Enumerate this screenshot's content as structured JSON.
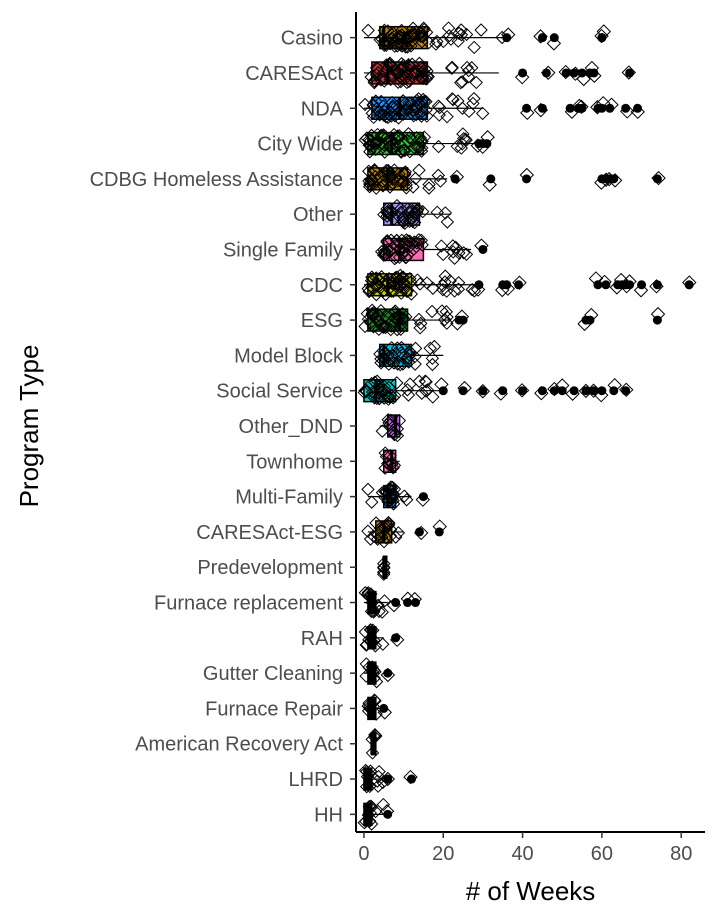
{
  "chart_data": {
    "type": "boxplot",
    "orientation": "horizontal",
    "xlabel": "# of Weeks",
    "ylabel": "Program Type",
    "xlim": [
      -2,
      86
    ],
    "xticks": [
      0,
      20,
      40,
      60,
      80
    ],
    "grid": false,
    "legend": "none",
    "categories": [
      {
        "name": "Casino",
        "color": "#B8860B",
        "q1": 4,
        "median": 5,
        "q3": 16,
        "whisker_low": 0,
        "whisker_high": 35,
        "outliers": [
          36,
          45,
          48,
          60,
          60
        ]
      },
      {
        "name": "CARESAct",
        "color": "#CD3333",
        "q1": 2,
        "median": 6,
        "q3": 16,
        "whisker_low": 0,
        "whisker_high": 34,
        "outliers": [
          40,
          46,
          51,
          53,
          55,
          57,
          58,
          67
        ]
      },
      {
        "name": "NDA",
        "color": "#1E90FF",
        "q1": 2,
        "median": 9,
        "q3": 16,
        "whisker_low": 0,
        "whisker_high": 30,
        "outliers": [
          41,
          45,
          52,
          54,
          55,
          59,
          60,
          62,
          66,
          69
        ]
      },
      {
        "name": "City Wide",
        "color": "#32CD32",
        "q1": 1,
        "median": 7,
        "q3": 15,
        "whisker_low": 0,
        "whisker_high": 28,
        "outliers": [
          29,
          30,
          31
        ]
      },
      {
        "name": "CDBG Homeless Assistance",
        "color": "#B8860B",
        "q1": 1,
        "median": 6,
        "q3": 11,
        "whisker_low": 0,
        "whisker_high": 21,
        "outliers": [
          23,
          32,
          41,
          60,
          61,
          62,
          63,
          74
        ]
      },
      {
        "name": "Other",
        "color": "#9999FF",
        "q1": 5,
        "median": 7,
        "q3": 14,
        "whisker_low": 5,
        "whisker_high": 22,
        "outliers": []
      },
      {
        "name": "Single Family",
        "color": "#FF69B4",
        "q1": 5,
        "median": 9,
        "q3": 15,
        "whisker_low": 4,
        "whisker_high": 27,
        "outliers": [
          30
        ]
      },
      {
        "name": "CDC",
        "color": "#CDCD00",
        "q1": 1,
        "median": 6,
        "q3": 12,
        "whisker_low": 0,
        "whisker_high": 28,
        "outliers": [
          29,
          35,
          36,
          39,
          59,
          61,
          64,
          65,
          66,
          67,
          70,
          74,
          82
        ]
      },
      {
        "name": "ESG",
        "color": "#228B22",
        "q1": 1,
        "median": 9,
        "q3": 11,
        "whisker_low": 0,
        "whisker_high": 22,
        "outliers": [
          24,
          25,
          56,
          57,
          74
        ]
      },
      {
        "name": "Model Block",
        "color": "#00BFFF",
        "q1": 4,
        "median": 5,
        "q3": 12,
        "whisker_low": 4,
        "whisker_high": 20,
        "outliers": []
      },
      {
        "name": "Social Service",
        "color": "#00CED1",
        "q1": 0,
        "median": 3,
        "q3": 8,
        "whisker_low": 0,
        "whisker_high": 19,
        "outliers": [
          20,
          25,
          30,
          35,
          40,
          45,
          48,
          50,
          53,
          56,
          58,
          60,
          63,
          66
        ]
      },
      {
        "name": "Other_DND",
        "color": "#CC66FF",
        "q1": 6,
        "median": 8,
        "q3": 9,
        "whisker_low": 4,
        "whisker_high": 9,
        "outliers": []
      },
      {
        "name": "Townhome",
        "color": "#FF69B4",
        "q1": 5,
        "median": 7,
        "q3": 8,
        "whisker_low": 5,
        "whisker_high": 9,
        "outliers": []
      },
      {
        "name": "Multi-Family",
        "color": "#1E90FF",
        "q1": 5,
        "median": 6,
        "q3": 8,
        "whisker_low": 1,
        "whisker_high": 12,
        "outliers": [
          15
        ]
      },
      {
        "name": "CARESAct-ESG",
        "color": "#B8860B",
        "q1": 3,
        "median": 5,
        "q3": 7,
        "whisker_low": 1,
        "whisker_high": 10,
        "outliers": [
          14,
          19
        ]
      },
      {
        "name": "Predevelopment",
        "color": "#000000",
        "q1": 5,
        "median": 5,
        "q3": 5,
        "whisker_low": 5,
        "whisker_high": 5,
        "outliers": []
      },
      {
        "name": "Furnace replacement",
        "color": "#000000",
        "q1": 1,
        "median": 2,
        "q3": 3,
        "whisker_low": 0,
        "whisker_high": 6,
        "outliers": [
          8,
          11,
          13
        ]
      },
      {
        "name": "RAH",
        "color": "#000000",
        "q1": 1,
        "median": 2,
        "q3": 3,
        "whisker_low": 0,
        "whisker_high": 5,
        "outliers": [
          8
        ]
      },
      {
        "name": "Gutter Cleaning",
        "color": "#000000",
        "q1": 1,
        "median": 2,
        "q3": 3,
        "whisker_low": 0,
        "whisker_high": 4,
        "outliers": [
          6
        ]
      },
      {
        "name": "Furnace Repair",
        "color": "#000000",
        "q1": 1,
        "median": 2,
        "q3": 3,
        "whisker_low": 0,
        "whisker_high": 4,
        "outliers": [
          5
        ]
      },
      {
        "name": "American Recovery Act",
        "color": "#000000",
        "q1": 2,
        "median": 2,
        "q3": 3,
        "whisker_low": 2,
        "whisker_high": 3,
        "outliers": []
      },
      {
        "name": "LHRD",
        "color": "#000000",
        "q1": 0,
        "median": 1,
        "q3": 2,
        "whisker_low": 0,
        "whisker_high": 5,
        "outliers": [
          6,
          12
        ]
      },
      {
        "name": "HH",
        "color": "#000000",
        "q1": 0,
        "median": 1,
        "q3": 2,
        "whisker_low": 0,
        "whisker_high": 5,
        "outliers": [
          6
        ]
      }
    ]
  }
}
